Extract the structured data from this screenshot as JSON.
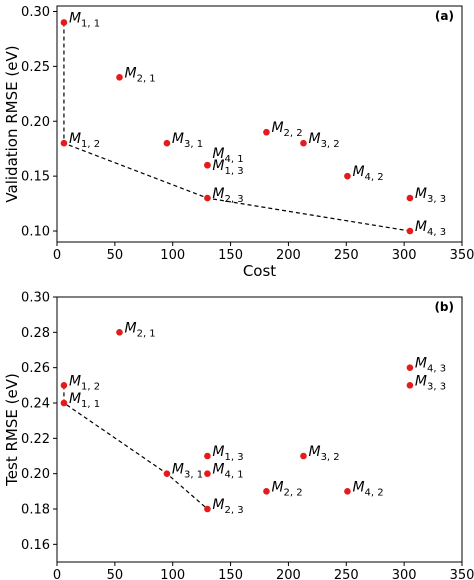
{
  "chart_data": [
    {
      "type": "scatter",
      "panel": "(a)",
      "xlabel": "Cost",
      "ylabel": "Validation RMSE (eV)",
      "xlim": [
        0,
        350
      ],
      "ylim": [
        0.09,
        0.305
      ],
      "xticks": [
        0,
        50,
        100,
        150,
        200,
        250,
        300,
        350
      ],
      "yticks": [
        0.1,
        0.15,
        0.2,
        0.25,
        0.3
      ],
      "ytick_format": 2,
      "grid": false,
      "marker_color": "#e41a1c",
      "points": [
        {
          "label": "M",
          "sub": "1, 1",
          "x": 6,
          "y": 0.29,
          "lp": "r"
        },
        {
          "label": "M",
          "sub": "2, 1",
          "x": 54,
          "y": 0.24,
          "lp": "r"
        },
        {
          "label": "M",
          "sub": "1, 2",
          "x": 6,
          "y": 0.18,
          "lp": "r"
        },
        {
          "label": "M",
          "sub": "3, 1",
          "x": 95,
          "y": 0.18,
          "lp": "r"
        },
        {
          "label": "M",
          "sub": "2, 2",
          "x": 181,
          "y": 0.19,
          "lp": "r"
        },
        {
          "label": "M",
          "sub": "3, 2",
          "x": 213,
          "y": 0.18,
          "lp": "r"
        },
        {
          "label": "M",
          "sub": "4, 1",
          "x": 130,
          "y": 0.16,
          "lp": "ru"
        },
        {
          "label": "M",
          "sub": "1, 3",
          "x": 130,
          "y": 0.16,
          "lp": "rd"
        },
        {
          "label": "M",
          "sub": "4, 2",
          "x": 251,
          "y": 0.15,
          "lp": "r"
        },
        {
          "label": "M",
          "sub": "2, 3",
          "x": 130,
          "y": 0.13,
          "lp": "r"
        },
        {
          "label": "M",
          "sub": "3, 3",
          "x": 305,
          "y": 0.13,
          "lp": "r"
        },
        {
          "label": "M",
          "sub": "4, 3",
          "x": 305,
          "y": 0.1,
          "lp": "r"
        }
      ],
      "pareto_front": [
        [
          6,
          0.29
        ],
        [
          6,
          0.18
        ],
        [
          130,
          0.13
        ],
        [
          305,
          0.1
        ]
      ]
    },
    {
      "type": "scatter",
      "panel": "(b)",
      "xlabel": "Cost",
      "ylabel": "Test RMSE (eV)",
      "xlim": [
        0,
        350
      ],
      "ylim": [
        0.15,
        0.3
      ],
      "xticks": [
        0,
        50,
        100,
        150,
        200,
        250,
        300,
        350
      ],
      "yticks": [
        0.16,
        0.18,
        0.2,
        0.22,
        0.24,
        0.26,
        0.28,
        0.3
      ],
      "ytick_format": 2,
      "grid": false,
      "marker_color": "#e41a1c",
      "points": [
        {
          "label": "M",
          "sub": "2, 1",
          "x": 54,
          "y": 0.28,
          "lp": "r"
        },
        {
          "label": "M",
          "sub": "1, 2",
          "x": 6,
          "y": 0.25,
          "lp": "r"
        },
        {
          "label": "M",
          "sub": "1, 1",
          "x": 6,
          "y": 0.24,
          "lp": "r"
        },
        {
          "label": "M",
          "sub": "4, 3",
          "x": 305,
          "y": 0.26,
          "lp": "r"
        },
        {
          "label": "M",
          "sub": "3, 3",
          "x": 305,
          "y": 0.25,
          "lp": "r"
        },
        {
          "label": "M",
          "sub": "1, 3",
          "x": 130,
          "y": 0.21,
          "lp": "r"
        },
        {
          "label": "M",
          "sub": "3, 2",
          "x": 213,
          "y": 0.21,
          "lp": "r"
        },
        {
          "label": "M",
          "sub": "3, 1",
          "x": 95,
          "y": 0.2,
          "lp": "r"
        },
        {
          "label": "M",
          "sub": "4, 1",
          "x": 130,
          "y": 0.2,
          "lp": "r"
        },
        {
          "label": "M",
          "sub": "2, 2",
          "x": 181,
          "y": 0.19,
          "lp": "r"
        },
        {
          "label": "M",
          "sub": "4, 2",
          "x": 251,
          "y": 0.19,
          "lp": "r"
        },
        {
          "label": "M",
          "sub": "2, 3",
          "x": 130,
          "y": 0.18,
          "lp": "r"
        }
      ],
      "pareto_front": [
        [
          6,
          0.25
        ],
        [
          6,
          0.24
        ],
        [
          95,
          0.2
        ],
        [
          130,
          0.18
        ]
      ]
    }
  ]
}
